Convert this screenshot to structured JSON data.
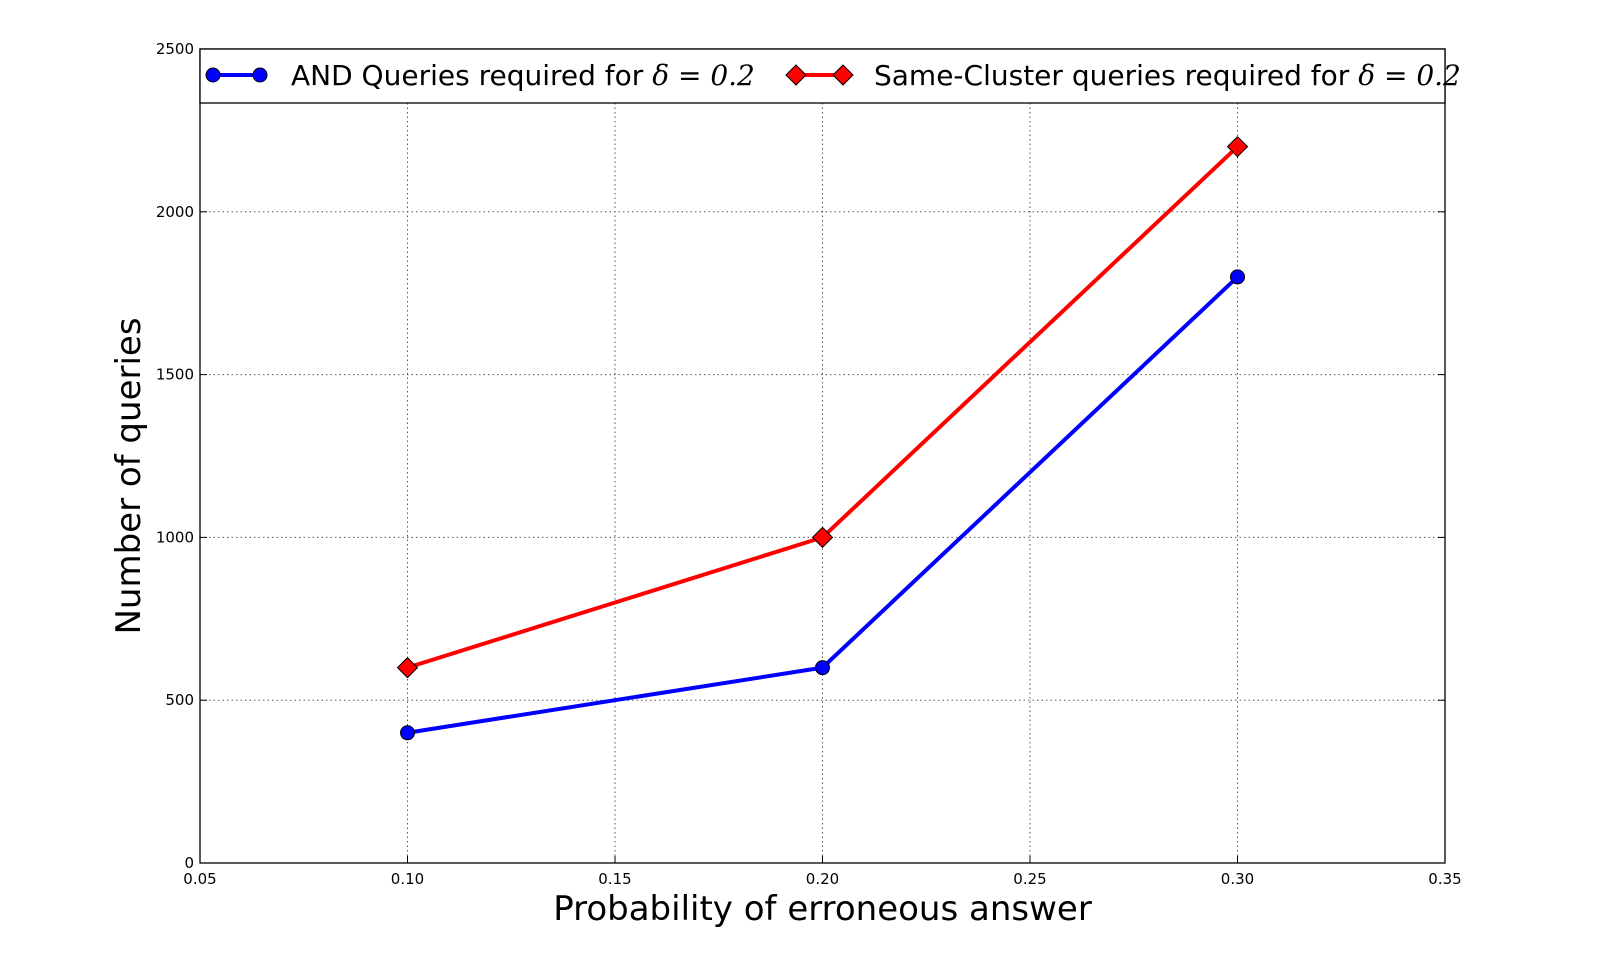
{
  "chart_data": {
    "type": "line",
    "xlabel": "Probability of erroneous answer",
    "ylabel": "Number of queries",
    "xlim": [
      0.05,
      0.35
    ],
    "ylim": [
      0,
      2500
    ],
    "xticks": [
      "0.05",
      "0.10",
      "0.15",
      "0.20",
      "0.25",
      "0.30",
      "0.35"
    ],
    "yticks": [
      "0",
      "500",
      "1000",
      "1500",
      "2000",
      "2500"
    ],
    "grid": true,
    "legend_position": "top",
    "series": [
      {
        "name": "AND Queries required for ",
        "math": "δ = 0.2",
        "color": "#0000ff",
        "marker": "circle",
        "x": [
          0.1,
          0.2,
          0.3
        ],
        "y": [
          400,
          600,
          1800
        ]
      },
      {
        "name": "Same-Cluster queries required for ",
        "math": "δ = 0.2",
        "color": "#ff0000",
        "marker": "diamond",
        "x": [
          0.1,
          0.2,
          0.3
        ],
        "y": [
          600,
          1000,
          2200
        ]
      }
    ]
  }
}
